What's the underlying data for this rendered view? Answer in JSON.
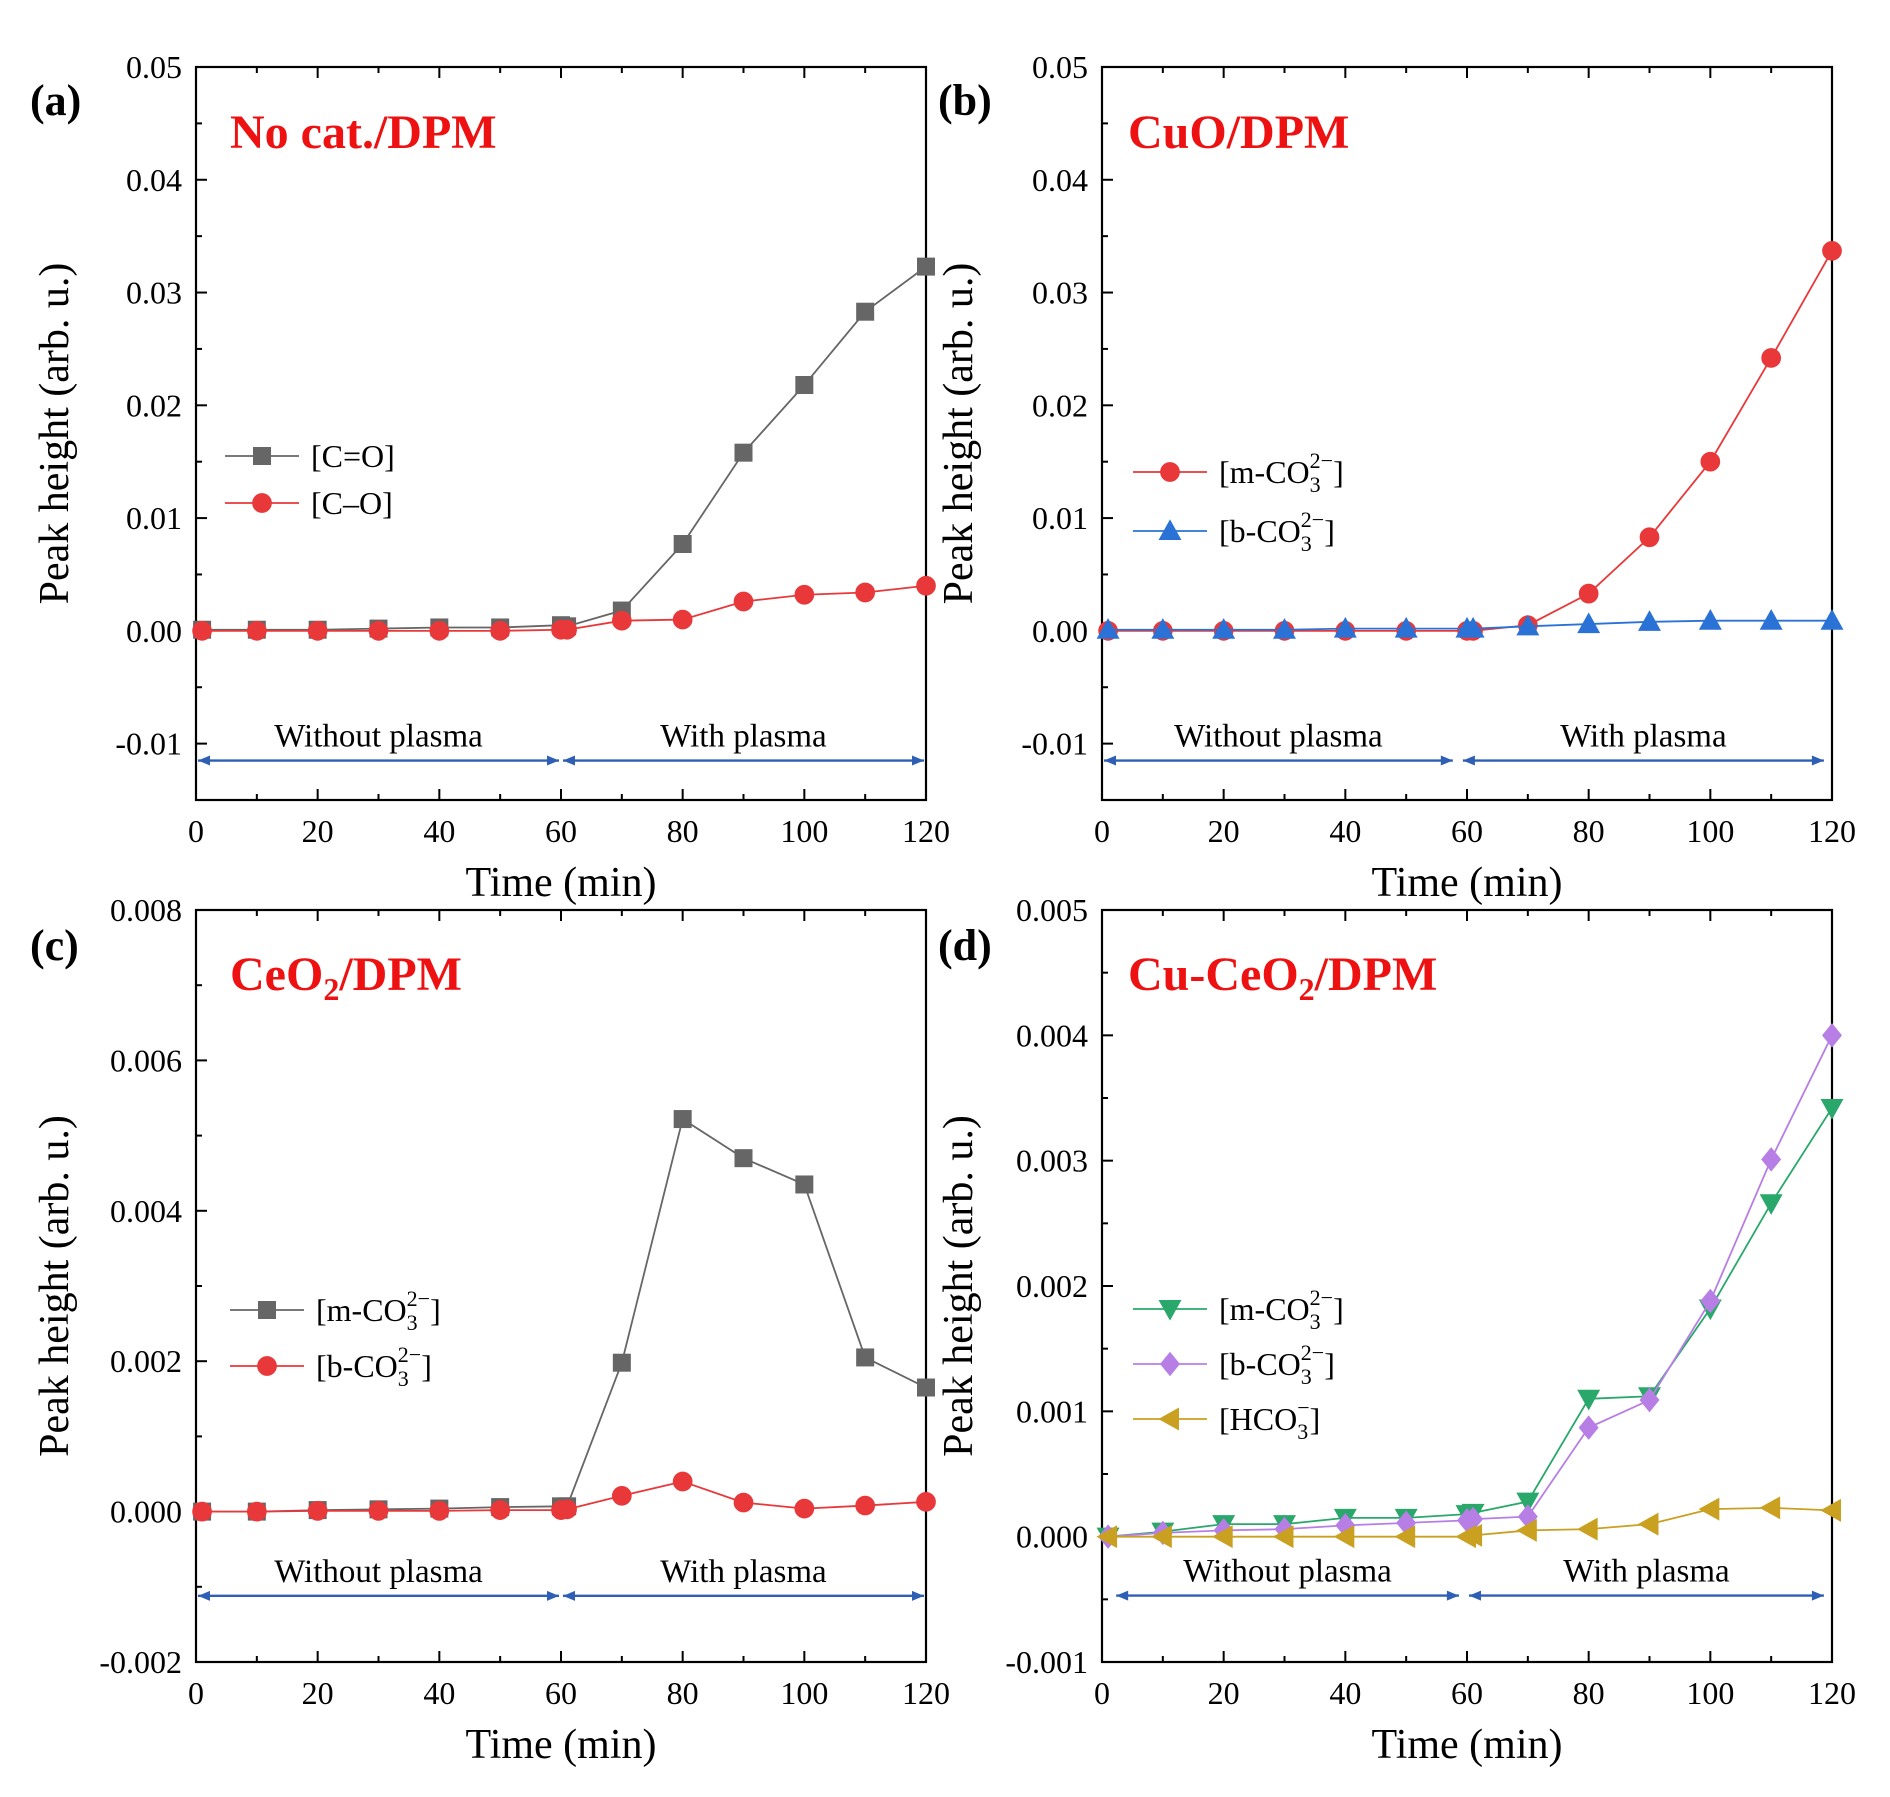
{
  "colors": {
    "gray": "#666666",
    "red": "#e8383a",
    "blue": "#2a72d6",
    "green": "#2aa86b",
    "purple": "#b77fe6",
    "gold": "#c9a020",
    "title_red": "#ee1111",
    "arrow_blue": "#2e5fb5"
  },
  "chart_data": [
    {
      "type": "line",
      "panel_label": "(a)",
      "title": "No cat./DPM",
      "xlabel": "Time (min)",
      "ylabel": "Peak height (arb. u.)",
      "xlim": [
        0,
        120
      ],
      "ylim": [
        -0.015,
        0.05
      ],
      "xticks": [
        0,
        20,
        40,
        60,
        80,
        100,
        120
      ],
      "xtick_labels": [
        "0",
        "20",
        "40",
        "60",
        "80",
        "100",
        "120"
      ],
      "yticks": [
        -0.01,
        0.0,
        0.01,
        0.02,
        0.03,
        0.04,
        0.05
      ],
      "ytick_labels": [
        "-0.01",
        "0.00",
        "0.01",
        "0.02",
        "0.03",
        "0.04",
        "0.05"
      ],
      "regions": [
        {
          "label": "Without plasma",
          "from": 0,
          "to": 60,
          "y": -0.0115
        },
        {
          "label": "With plasma",
          "from": 60,
          "to": 120,
          "y": -0.0115
        }
      ],
      "legend": {
        "position": "middle-left"
      },
      "x": [
        1,
        10,
        20,
        30,
        40,
        50,
        60,
        61,
        70,
        80,
        90,
        100,
        110,
        120
      ],
      "series": [
        {
          "name": "[C=O]",
          "legend_main": "[C=O]",
          "marker": "square",
          "color": "#666666",
          "values": [
            0.0001,
            0.0001,
            0.0001,
            0.0002,
            0.0003,
            0.0003,
            0.0005,
            0.0004,
            0.0018,
            0.0077,
            0.0158,
            0.0218,
            0.0283,
            0.0323
          ]
        },
        {
          "name": "[C–O]",
          "legend_main": "[C–O]",
          "marker": "circle",
          "color": "#e8383a",
          "values": [
            0.0,
            0.0,
            0.0,
            0.0,
            0.0,
            0.0,
            0.0001,
            0.0001,
            0.0009,
            0.001,
            0.0026,
            0.0032,
            0.0034,
            0.004
          ]
        }
      ]
    },
    {
      "type": "line",
      "panel_label": "(b)",
      "title": "CuO/DPM",
      "xlabel": "Time (min)",
      "ylabel": "Peak height (arb. u.)",
      "xlim": [
        0,
        120
      ],
      "ylim": [
        -0.015,
        0.05
      ],
      "xticks": [
        0,
        20,
        40,
        60,
        80,
        100,
        120
      ],
      "xtick_labels": [
        "0",
        "20",
        "40",
        "60",
        "80",
        "100",
        "120"
      ],
      "yticks": [
        -0.01,
        0.0,
        0.01,
        0.02,
        0.03,
        0.04,
        0.05
      ],
      "ytick_labels": [
        "-0.01",
        "0.00",
        "0.01",
        "0.02",
        "0.03",
        "0.04",
        "0.05"
      ],
      "regions": [
        {
          "label": "Without plasma",
          "from": 0,
          "to": 58,
          "y": -0.0115
        },
        {
          "label": "With plasma",
          "from": 59,
          "to": 119,
          "y": -0.0115
        }
      ],
      "legend": {
        "position": "middle-left"
      },
      "x": [
        1,
        10,
        20,
        30,
        40,
        50,
        60,
        61,
        70,
        80,
        90,
        100,
        110,
        120
      ],
      "series": [
        {
          "name": "[m-CO3 2−]",
          "legend_main": "[m-CO",
          "legend_sub": "3",
          "legend_sup": "2−",
          "legend_end": "]",
          "marker": "circle",
          "color": "#e8383a",
          "values": [
            0.0,
            0.0,
            0.0,
            0.0,
            0.0,
            0.0,
            0.0,
            0.0,
            0.0005,
            0.0033,
            0.0083,
            0.015,
            0.0242,
            0.0337
          ]
        },
        {
          "name": "[b-CO3 2−]",
          "legend_main": "[b-CO",
          "legend_sub": "3",
          "legend_sup": "2−",
          "legend_end": "]",
          "marker": "triangle-up",
          "color": "#2a72d6",
          "values": [
            0.0001,
            0.0001,
            0.0001,
            0.0001,
            0.0002,
            0.0002,
            0.0002,
            0.0002,
            0.0004,
            0.0006,
            0.0008,
            0.0009,
            0.0009,
            0.0009
          ]
        }
      ]
    },
    {
      "type": "line",
      "panel_label": "(c)",
      "title": "CeO",
      "title_sub": "2",
      "title_end": "/DPM",
      "xlabel": "Time (min)",
      "ylabel": "Peak height (arb. u.)",
      "xlim": [
        0,
        120
      ],
      "ylim": [
        -0.002,
        0.008
      ],
      "xticks": [
        0,
        20,
        40,
        60,
        80,
        100,
        120
      ],
      "xtick_labels": [
        "0",
        "20",
        "40",
        "60",
        "80",
        "100",
        "120"
      ],
      "yticks": [
        -0.002,
        0.0,
        0.002,
        0.004,
        0.006,
        0.008
      ],
      "ytick_labels": [
        "-0.002",
        "0.000",
        "0.002",
        "0.004",
        "0.006",
        "0.008"
      ],
      "regions": [
        {
          "label": "Without plasma",
          "from": 0,
          "to": 60,
          "y": -0.00112
        },
        {
          "label": "With plasma",
          "from": 60,
          "to": 120,
          "y": -0.00112
        }
      ],
      "legend": {
        "position": "middle-left"
      },
      "x": [
        1,
        10,
        20,
        30,
        40,
        50,
        60,
        61,
        70,
        80,
        90,
        100,
        110,
        120
      ],
      "series": [
        {
          "name": "[m-CO3 2−]",
          "legend_main": "[m-CO",
          "legend_sub": "3",
          "legend_sup": "2−",
          "legend_end": "]",
          "marker": "square",
          "color": "#666666",
          "values": [
            0.0,
            0.0,
            2e-05,
            3e-05,
            4e-05,
            6e-05,
            7e-05,
            7e-05,
            0.00198,
            0.00522,
            0.0047,
            0.00435,
            0.00205,
            0.00165
          ]
        },
        {
          "name": "[b-CO3 2−]",
          "legend_main": "[b-CO",
          "legend_sub": "3",
          "legend_sup": "2−",
          "legend_end": "]",
          "marker": "circle",
          "color": "#e8383a",
          "values": [
            0.0,
            0.0,
            1e-05,
            1e-05,
            1e-05,
            2e-05,
            2e-05,
            3e-05,
            0.00021,
            0.0004,
            0.00012,
            4e-05,
            8e-05,
            0.00013
          ]
        }
      ]
    },
    {
      "type": "line",
      "panel_label": "(d)",
      "title": "Cu-CeO",
      "title_sub": "2",
      "title_end": "/DPM",
      "xlabel": "Time (min)",
      "ylabel": "Peak height (arb. u.)",
      "xlim": [
        0,
        120
      ],
      "ylim": [
        -0.001,
        0.005
      ],
      "xticks": [
        0,
        20,
        40,
        60,
        80,
        100,
        120
      ],
      "xtick_labels": [
        "0",
        "20",
        "40",
        "60",
        "80",
        "100",
        "120"
      ],
      "yticks": [
        -0.001,
        0.0,
        0.001,
        0.002,
        0.003,
        0.004,
        0.005
      ],
      "ytick_labels": [
        "-0.001",
        "0.000",
        "0.001",
        "0.002",
        "0.003",
        "0.004",
        "0.005"
      ],
      "regions": [
        {
          "label": "Without plasma",
          "from": 2,
          "to": 59,
          "y": -0.00047
        },
        {
          "label": "With plasma",
          "from": 60,
          "to": 119,
          "y": -0.00047
        }
      ],
      "legend": {
        "position": "middle-left"
      },
      "x": [
        1,
        10,
        20,
        30,
        40,
        50,
        60,
        61,
        70,
        80,
        90,
        100,
        110,
        120
      ],
      "series": [
        {
          "name": "[m-CO3 2−]",
          "legend_main": "[m-CO",
          "legend_sub": "3",
          "legend_sup": "2−",
          "legend_end": "]",
          "marker": "triangle-down",
          "color": "#2aa86b",
          "values": [
            0.0,
            4e-05,
            0.0001,
            0.0001,
            0.00015,
            0.00015,
            0.00018,
            0.00019,
            0.00028,
            0.0011,
            0.00112,
            0.00182,
            0.00266,
            0.00342
          ]
        },
        {
          "name": "[b-CO3 2−]",
          "legend_main": "[b-CO",
          "legend_sub": "3",
          "legend_sup": "2−",
          "legend_end": "]",
          "marker": "diamond",
          "color": "#b77fe6",
          "values": [
            0.0,
            3e-05,
            5e-05,
            6e-05,
            9e-05,
            0.00011,
            0.00013,
            0.00014,
            0.00016,
            0.00087,
            0.00109,
            0.00188,
            0.00301,
            0.004
          ]
        },
        {
          "name": "[HCO3 −]",
          "legend_main": "[HCO",
          "legend_sub": "3",
          "legend_sup": "−",
          "legend_end": "]",
          "marker": "triangle-left",
          "color": "#c9a020",
          "values": [
            0.0,
            0.0,
            0.0,
            0.0,
            0.0,
            0.0,
            0.0,
            1e-05,
            5e-05,
            6e-05,
            0.0001,
            0.00022,
            0.00023,
            0.00021
          ]
        }
      ]
    }
  ]
}
